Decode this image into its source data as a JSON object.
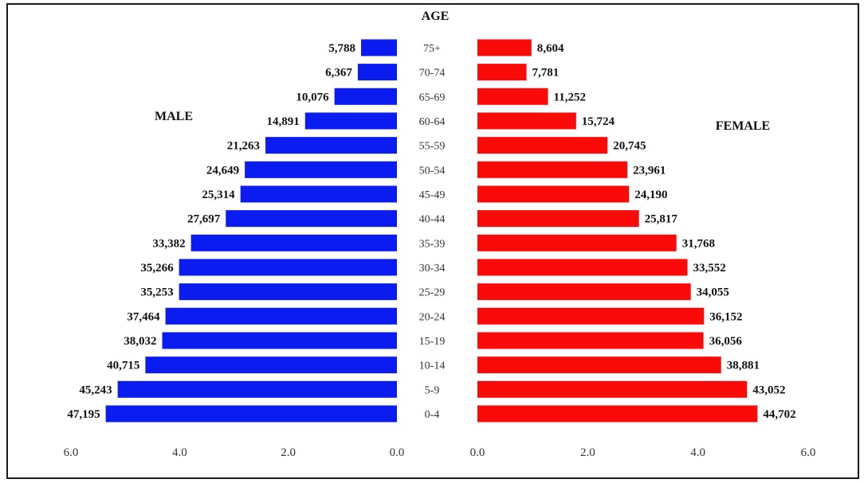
{
  "chart_data": {
    "type": "bar",
    "orientation": "horizontal",
    "layout": "population-pyramid",
    "headings": {
      "center": "AGE",
      "left": "MALE",
      "right": "FEMALE"
    },
    "categories": [
      "0-4",
      "5-9",
      "10-14",
      "15-19",
      "20-24",
      "25-29",
      "30-34",
      "35-39",
      "40-44",
      "45-49",
      "50-54",
      "55-59",
      "60-64",
      "65-69",
      "70-74",
      "75+"
    ],
    "category_labels": [
      "0-4",
      "5-9",
      "10-14",
      "15-19",
      "20-24",
      "25-29",
      "30-34",
      "35-39",
      "40-44",
      "45-49",
      "50-54",
      "55-59",
      "60-64",
      "65-69",
      "70-74",
      "75+"
    ],
    "series": [
      {
        "key": "male",
        "color": "#0a1cf0",
        "values": [
          5.36,
          5.14,
          4.63,
          4.32,
          4.26,
          4.01,
          4.01,
          3.79,
          3.15,
          2.88,
          2.8,
          2.42,
          1.69,
          1.15,
          0.72,
          0.66
        ],
        "labels": [
          "47,195",
          "45,243",
          "40,715",
          "38,032",
          "37,464",
          "35,253",
          "35,266",
          "33,382",
          "27,697",
          "25,314",
          "24,649",
          "21,263",
          "14,891",
          "10,076",
          "6,367",
          "5,788"
        ]
      },
      {
        "key": "female",
        "color": "#fb0a0a",
        "values": [
          5.08,
          4.89,
          4.42,
          4.1,
          4.11,
          3.87,
          3.81,
          3.61,
          2.93,
          2.75,
          2.72,
          2.36,
          1.79,
          1.28,
          0.89,
          0.98
        ],
        "labels": [
          "44,702",
          "43,052",
          "38,881",
          "36,056",
          "36,152",
          "34,055",
          "33,552",
          "31,768",
          "25,817",
          "24,190",
          "23,961",
          "20,745",
          "15,724",
          "11,252",
          "7,781",
          "8,604"
        ]
      }
    ],
    "xlim": [
      0,
      6
    ],
    "left_ticks": [
      "6.0",
      "4.0",
      "2.0",
      "0.0"
    ],
    "right_ticks": [
      "0.0",
      "2.0",
      "4.0",
      "6.0"
    ],
    "grid": false,
    "legend": "none"
  }
}
